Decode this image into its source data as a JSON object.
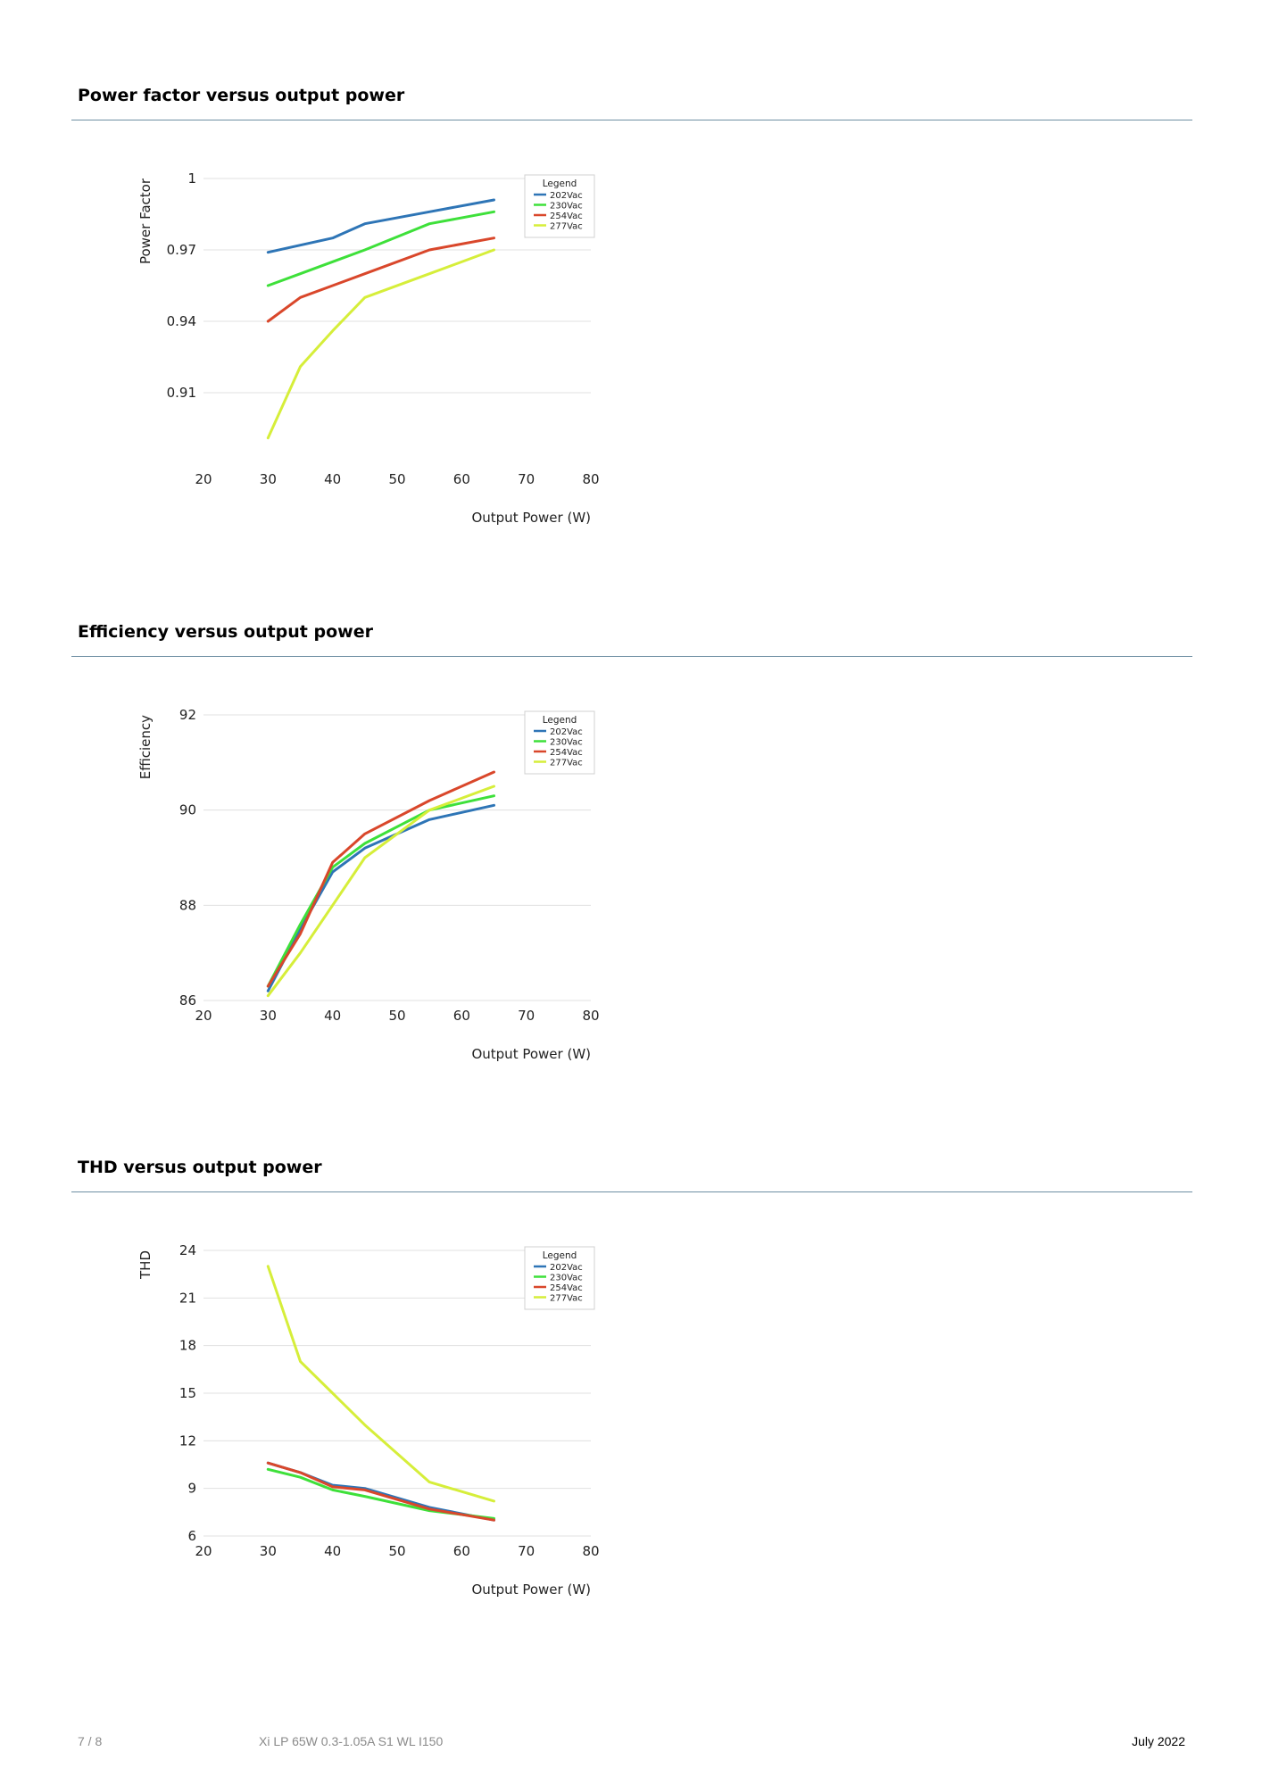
{
  "sections": [
    {
      "title": "Power factor versus output power"
    },
    {
      "title": "Efficiency versus output power"
    },
    {
      "title": "THD versus output power"
    }
  ],
  "footer": {
    "page": "7 / 8",
    "product": "Xi LP 65W 0.3-1.05A S1 WL I150",
    "date": "July 2022"
  },
  "chart_data": [
    {
      "type": "line",
      "title": "Power factor versus output power",
      "xlabel": "Output Power (W)",
      "ylabel": "Power Factor",
      "xlim": [
        20,
        80
      ],
      "ylim": [
        0.88,
        1.0
      ],
      "xticks": [
        20,
        30,
        40,
        50,
        60,
        70,
        80
      ],
      "yticks": [
        0.91,
        0.94,
        0.97,
        1
      ],
      "ytick_labels": [
        "0.91",
        "0.94",
        "0.97",
        "1"
      ],
      "grid": true,
      "legend": {
        "title": "Legend",
        "position": "top-right"
      },
      "series": [
        {
          "name": "202Vac",
          "color": "#2e75b6",
          "x": [
            30,
            35,
            40,
            45,
            55,
            65
          ],
          "y": [
            0.969,
            0.972,
            0.975,
            0.981,
            0.986,
            0.991
          ]
        },
        {
          "name": "230Vac",
          "color": "#3ee03a",
          "x": [
            30,
            35,
            40,
            45,
            55,
            65
          ],
          "y": [
            0.955,
            0.96,
            0.965,
            0.97,
            0.981,
            0.986
          ]
        },
        {
          "name": "254Vac",
          "color": "#d9472b",
          "x": [
            30,
            35,
            40,
            45,
            55,
            65
          ],
          "y": [
            0.94,
            0.95,
            0.955,
            0.96,
            0.97,
            0.975
          ]
        },
        {
          "name": "277Vac",
          "color": "#d6ee3a",
          "x": [
            30,
            35,
            40,
            45,
            55,
            65
          ],
          "y": [
            0.891,
            0.921,
            0.936,
            0.95,
            0.96,
            0.97
          ]
        }
      ]
    },
    {
      "type": "line",
      "title": "Efficiency versus output power",
      "xlabel": "Output Power (W)",
      "ylabel": "Efficiency",
      "xlim": [
        20,
        80
      ],
      "ylim": [
        86,
        92
      ],
      "xticks": [
        20,
        30,
        40,
        50,
        60,
        70,
        80
      ],
      "yticks": [
        86,
        88,
        90,
        92
      ],
      "ytick_labels": [
        "86",
        "88",
        "90",
        "92"
      ],
      "grid": true,
      "legend": {
        "title": "Legend",
        "position": "top-right"
      },
      "series": [
        {
          "name": "202Vac",
          "color": "#2e75b6",
          "x": [
            30,
            35,
            40,
            45,
            55,
            65
          ],
          "y": [
            86.2,
            87.5,
            88.7,
            89.2,
            89.8,
            90.1
          ]
        },
        {
          "name": "230Vac",
          "color": "#3ee03a",
          "x": [
            30,
            35,
            40,
            45,
            55,
            65
          ],
          "y": [
            86.3,
            87.6,
            88.8,
            89.3,
            90.0,
            90.3
          ]
        },
        {
          "name": "254Vac",
          "color": "#d9472b",
          "x": [
            30,
            35,
            40,
            45,
            55,
            65
          ],
          "y": [
            86.3,
            87.4,
            88.9,
            89.5,
            90.2,
            90.8
          ]
        },
        {
          "name": "277Vac",
          "color": "#d6ee3a",
          "x": [
            30,
            35,
            40,
            45,
            55,
            65
          ],
          "y": [
            86.1,
            87.0,
            88.0,
            89.0,
            90.0,
            90.5
          ]
        }
      ]
    },
    {
      "type": "line",
      "title": "THD versus output power",
      "xlabel": "Output Power (W)",
      "ylabel": "THD",
      "xlim": [
        20,
        80
      ],
      "ylim": [
        6,
        24
      ],
      "xticks": [
        20,
        30,
        40,
        50,
        60,
        70,
        80
      ],
      "yticks": [
        6,
        9,
        12,
        15,
        18,
        21,
        24
      ],
      "ytick_labels": [
        "6",
        "9",
        "12",
        "15",
        "18",
        "21",
        "24"
      ],
      "grid": true,
      "legend": {
        "title": "Legend",
        "position": "top-right"
      },
      "series": [
        {
          "name": "202Vac",
          "color": "#2e75b6",
          "x": [
            30,
            35,
            40,
            45,
            55,
            65
          ],
          "y": [
            10.6,
            10.0,
            9.2,
            9.0,
            7.8,
            7.0
          ]
        },
        {
          "name": "230Vac",
          "color": "#3ee03a",
          "x": [
            30,
            35,
            40,
            45,
            55,
            65
          ],
          "y": [
            10.2,
            9.7,
            8.9,
            8.5,
            7.6,
            7.1
          ]
        },
        {
          "name": "254Vac",
          "color": "#d9472b",
          "x": [
            30,
            35,
            40,
            45,
            55,
            65
          ],
          "y": [
            10.6,
            10.0,
            9.1,
            8.9,
            7.7,
            7.0
          ]
        },
        {
          "name": "277Vac",
          "color": "#d6ee3a",
          "x": [
            30,
            35,
            40,
            45,
            55,
            65
          ],
          "y": [
            23.0,
            17.0,
            15.0,
            13.0,
            9.4,
            8.2
          ]
        }
      ]
    }
  ]
}
